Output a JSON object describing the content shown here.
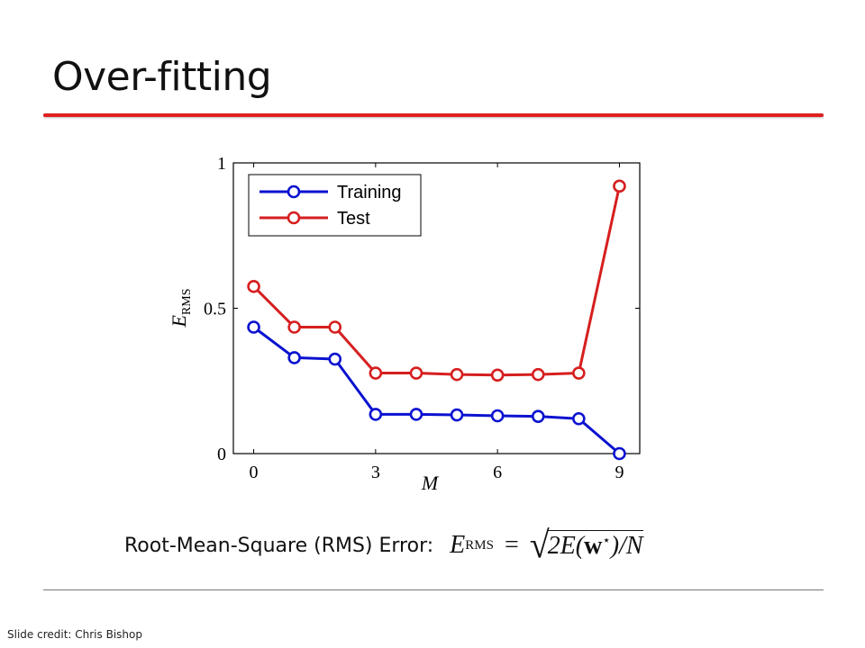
{
  "slide": {
    "title": "Over-fitting",
    "formula_label": "Root-Mean-Square (RMS) Error:",
    "formula": {
      "lhs": "E",
      "lhs_sub": "RMS",
      "equals": "=",
      "rad_a": "2E(",
      "rad_w": "w",
      "rad_star": "⋆",
      "rad_b": ")/N"
    },
    "credit": "Slide credit: Chris Bishop"
  },
  "colors": {
    "title_rule": "#e02020",
    "training": "#0b12d0",
    "test": "#d61f1f"
  },
  "chart_data": {
    "type": "line",
    "x": [
      0,
      1,
      2,
      3,
      4,
      5,
      6,
      7,
      8,
      9
    ],
    "xlim": [
      -0.5,
      9.5
    ],
    "ylim": [
      0,
      1
    ],
    "xticks": [
      "0",
      "3",
      "6",
      "9"
    ],
    "xtick_values": [
      0,
      3,
      6,
      9
    ],
    "yticks": [
      "0",
      "0.5",
      "1"
    ],
    "ytick_values": [
      0,
      0.5,
      1
    ],
    "xlabel": "M",
    "ylabel": "E",
    "ylabel_sub": "RMS",
    "legend_position": "top-left",
    "series": [
      {
        "name": "Training",
        "color": "#0b12d0",
        "values": [
          0.435,
          0.33,
          0.325,
          0.135,
          0.135,
          0.133,
          0.13,
          0.128,
          0.12,
          0.0
        ]
      },
      {
        "name": "Test",
        "color": "#d61f1f",
        "values": [
          0.575,
          0.435,
          0.435,
          0.277,
          0.277,
          0.272,
          0.27,
          0.272,
          0.277,
          0.92
        ]
      }
    ]
  }
}
